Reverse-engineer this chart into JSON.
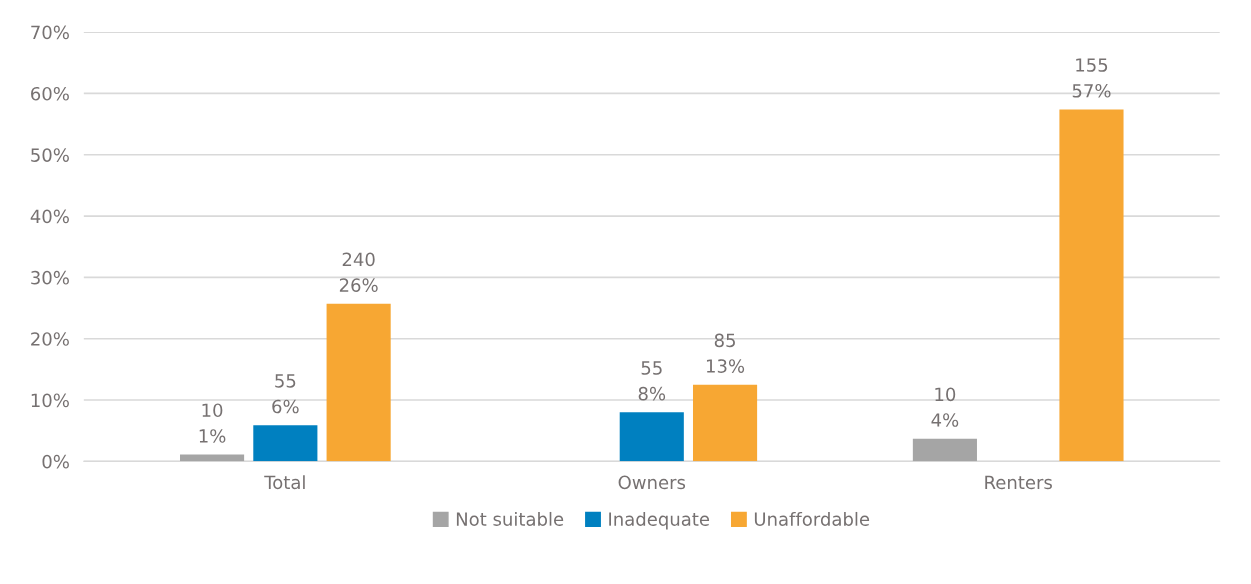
{
  "chart_data": {
    "type": "bar",
    "categories": [
      "Total",
      "Owners",
      "Renters"
    ],
    "series": [
      {
        "name": "Not suitable",
        "color": "#a5a5a5",
        "values": [
          1.1,
          null,
          3.7
        ],
        "value_labels": [
          "10\n1%",
          null,
          "10\n4%"
        ]
      },
      {
        "name": "Inadequate",
        "color": "#0080c0",
        "values": [
          5.9,
          8.0,
          null
        ],
        "value_labels": [
          "55\n6%",
          "55\n8%",
          null
        ]
      },
      {
        "name": "Unaffordable",
        "color": "#f7a733",
        "values": [
          25.7,
          12.5,
          57.4
        ],
        "value_labels": [
          "240\n26%",
          "85\n13%",
          "155\n57%"
        ]
      }
    ],
    "ylim": [
      0,
      70
    ],
    "yticks": [
      {
        "value": 0,
        "label": "0%"
      },
      {
        "value": 10,
        "label": "10%"
      },
      {
        "value": 20,
        "label": "20%"
      },
      {
        "value": 30,
        "label": "30%"
      },
      {
        "value": 40,
        "label": "40%"
      },
      {
        "value": 50,
        "label": "50%"
      },
      {
        "value": 60,
        "label": "60%"
      },
      {
        "value": 70,
        "label": "70%"
      }
    ],
    "grid": "y",
    "legend": "bottom"
  }
}
